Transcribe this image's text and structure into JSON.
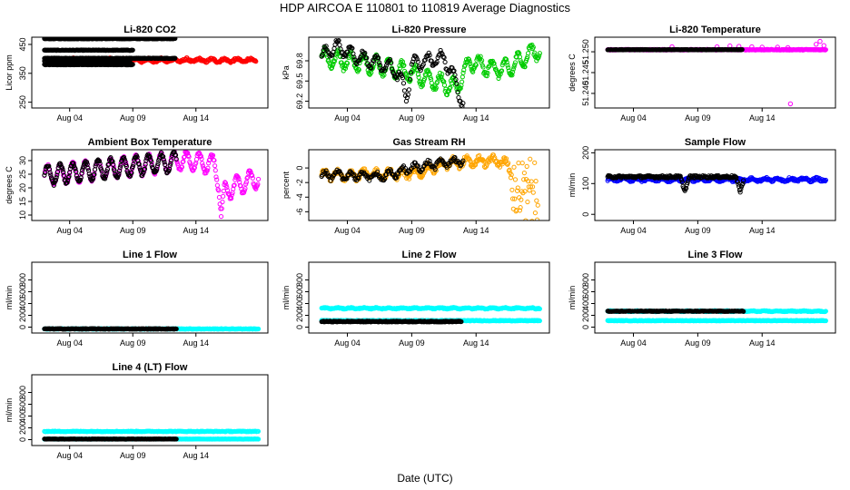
{
  "figure": {
    "title": "HDP    AIRCOA E    110801 to 110819    Average Diagnostics",
    "xlabel": "Date (UTC)"
  },
  "colors": {
    "black": "#000000",
    "red": "#ff0000",
    "green": "#00cc00",
    "magenta": "#ff00ff",
    "orange": "#ffa500",
    "blue": "#0000ff",
    "cyan": "#00ffff"
  },
  "chart_data": [
    {
      "id": "co2",
      "type": "scatter",
      "title": "Li-820 CO2",
      "ylabel": "Licor ppm",
      "xlim": [
        1.0,
        19.7
      ],
      "ylim": [
        230,
        475
      ],
      "xticks": [
        {
          "v": 4,
          "label": "Aug 04"
        },
        {
          "v": 9,
          "label": "Aug 09"
        },
        {
          "v": 14,
          "label": "Aug 14"
        }
      ],
      "yticks": [
        {
          "v": 250,
          "label": "250"
        },
        {
          "v": 350,
          "label": "350"
        },
        {
          "v": 450,
          "label": "450"
        }
      ],
      "series": [
        {
          "name": "red",
          "color": "red",
          "pattern": "dense",
          "x0": 2.5,
          "x1": 18.8,
          "base": 395,
          "amp": 5,
          "noise": 4,
          "period": 1
        },
        {
          "name": "black-a",
          "color": "black",
          "pattern": "dense",
          "x0": 2.0,
          "x1": 12.4,
          "base": 470,
          "amp": 0,
          "noise": 1,
          "period": 1
        },
        {
          "name": "black-b",
          "color": "black",
          "pattern": "dense",
          "x0": 2.0,
          "x1": 9.0,
          "base": 430,
          "amp": 0,
          "noise": 1,
          "period": 1
        },
        {
          "name": "black-c",
          "color": "black",
          "pattern": "dense",
          "x0": 2.0,
          "x1": 12.4,
          "base": 402,
          "amp": 0,
          "noise": 1,
          "period": 1
        },
        {
          "name": "black-d",
          "color": "black",
          "pattern": "dense",
          "x0": 2.0,
          "x1": 8.8,
          "base": 392,
          "amp": 3,
          "noise": 2,
          "period": 1
        },
        {
          "name": "black-e",
          "color": "black",
          "pattern": "dense",
          "x0": 2.0,
          "x1": 9.0,
          "base": 380,
          "amp": 0,
          "noise": 1,
          "period": 1
        }
      ]
    },
    {
      "id": "pressure",
      "type": "scatter",
      "title": "Li-820 Pressure",
      "ylabel": "kPa",
      "xlim": [
        1.0,
        19.7
      ],
      "ylim": [
        69.1,
        70.15
      ],
      "xticks": [
        {
          "v": 4,
          "label": "Aug 04"
        },
        {
          "v": 9,
          "label": "Aug 09"
        },
        {
          "v": 14,
          "label": "Aug 14"
        }
      ],
      "yticks": [
        {
          "v": 69.2,
          "label": "69.2"
        },
        {
          "v": 69.5,
          "label": "69.5"
        },
        {
          "v": 69.8,
          "label": "69.8"
        }
      ],
      "series": [
        {
          "name": "green",
          "color": "green",
          "pattern": "dense",
          "x0": 2.0,
          "x1": 19.0,
          "base": 69.75,
          "amp": 0.12,
          "noise": 0.04,
          "period": 1,
          "trend": [
            [
              2,
              69.85
            ],
            [
              7,
              69.72
            ],
            [
              10,
              69.55
            ],
            [
              12.5,
              69.4
            ],
            [
              13.5,
              69.78
            ],
            [
              15,
              69.7
            ],
            [
              16.5,
              69.68
            ],
            [
              18,
              69.88
            ],
            [
              19,
              69.98
            ]
          ]
        },
        {
          "name": "black",
          "color": "black",
          "pattern": "circles",
          "x0": 2.0,
          "x1": 13.0,
          "base": 69.85,
          "amp": 0.1,
          "noise": 0.03,
          "period": 1,
          "trend": [
            [
              2,
              69.85
            ],
            [
              3,
              70.02
            ],
            [
              5,
              69.85
            ],
            [
              7.2,
              69.72
            ],
            [
              8.0,
              69.6
            ],
            [
              8.6,
              69.25
            ],
            [
              9,
              69.75
            ],
            [
              11.5,
              69.85
            ],
            [
              12.4,
              69.5
            ],
            [
              12.9,
              69.2
            ]
          ]
        }
      ]
    },
    {
      "id": "licor-temp",
      "type": "scatter",
      "title": "Li-820 Temperature",
      "ylabel": "degrees C",
      "xlim": [
        1.0,
        19.7
      ],
      "ylim": [
        51.2365,
        51.2535
      ],
      "xticks": [
        {
          "v": 4,
          "label": "Aug 04"
        },
        {
          "v": 9,
          "label": "Aug 09"
        },
        {
          "v": 14,
          "label": "Aug 14"
        }
      ],
      "yticks": [
        {
          "v": 51.24,
          "label": "51.240"
        },
        {
          "v": 51.245,
          "label": "51.245"
        },
        {
          "v": 51.25,
          "label": "51.250"
        }
      ],
      "series": [
        {
          "name": "magenta",
          "color": "magenta",
          "pattern": "dense",
          "x0": 2.0,
          "x1": 19.0,
          "base": 51.2505,
          "amp": 0,
          "noise": 0.0001,
          "period": 1
        },
        {
          "name": "magenta-pts",
          "color": "magenta",
          "pattern": "points",
          "points": [
            [
              7.0,
              51.2512
            ],
            [
              10.5,
              51.2512
            ],
            [
              11.5,
              51.2514
            ],
            [
              12.2,
              51.2513
            ],
            [
              13.2,
              51.2512
            ],
            [
              14.0,
              51.2511
            ],
            [
              15.2,
              51.2511
            ],
            [
              16.0,
              51.251
            ],
            [
              16.2,
              51.2375
            ],
            [
              18.2,
              51.2518
            ],
            [
              18.5,
              51.2525
            ],
            [
              18.8,
              51.2515
            ]
          ]
        },
        {
          "name": "black",
          "color": "black",
          "pattern": "dense",
          "x0": 2.0,
          "x1": 12.5,
          "base": 51.2505,
          "amp": 0,
          "noise": 5e-05,
          "period": 1
        }
      ]
    },
    {
      "id": "ambient-temp",
      "type": "scatter",
      "title": "Ambient Box Temperature",
      "ylabel": "degrees C",
      "xlim": [
        1.0,
        19.7
      ],
      "ylim": [
        8,
        34
      ],
      "xticks": [
        {
          "v": 4,
          "label": "Aug 04"
        },
        {
          "v": 9,
          "label": "Aug 09"
        },
        {
          "v": 14,
          "label": "Aug 14"
        }
      ],
      "yticks": [
        {
          "v": 10,
          "label": "10"
        },
        {
          "v": 15,
          "label": "15"
        },
        {
          "v": 20,
          "label": "20"
        },
        {
          "v": 25,
          "label": "25"
        },
        {
          "v": 30,
          "label": "30"
        }
      ],
      "series": [
        {
          "name": "magenta",
          "color": "magenta",
          "pattern": "dense",
          "x0": 2.0,
          "x1": 19.0,
          "base": 27,
          "amp": 3.5,
          "noise": 0.6,
          "period": 1,
          "trend": [
            [
              2,
              24.5
            ],
            [
              6,
              26.5
            ],
            [
              10,
              28.5
            ],
            [
              13,
              30
            ],
            [
              15.5,
              28.5
            ],
            [
              15.8,
              22
            ],
            [
              16,
              10
            ],
            [
              16.3,
              19
            ],
            [
              19,
              24
            ]
          ]
        },
        {
          "name": "black",
          "color": "black",
          "pattern": "dense",
          "x0": 2.0,
          "x1": 12.5,
          "base": 27,
          "amp": 3.5,
          "noise": 0.5,
          "period": 1,
          "trend": [
            [
              2,
              24.5
            ],
            [
              6,
              26.5
            ],
            [
              10,
              28.5
            ],
            [
              12.5,
              29.5
            ]
          ]
        }
      ]
    },
    {
      "id": "rh",
      "type": "scatter",
      "title": "Gas Stream RH",
      "ylabel": "percent",
      "xlim": [
        1.0,
        19.7
      ],
      "ylim": [
        -7.2,
        2.5
      ],
      "xticks": [
        {
          "v": 4,
          "label": "Aug 04"
        },
        {
          "v": 9,
          "label": "Aug 09"
        },
        {
          "v": 14,
          "label": "Aug 14"
        }
      ],
      "yticks": [
        {
          "v": -6,
          "label": "-6"
        },
        {
          "v": -4,
          "label": "-4"
        },
        {
          "v": -2,
          "label": "-2"
        },
        {
          "v": 0,
          "label": "0"
        }
      ],
      "series": [
        {
          "name": "orange",
          "color": "orange",
          "pattern": "dense",
          "x0": 2.0,
          "x1": 19.0,
          "base": -0.8,
          "amp": 0.5,
          "noise": 0.4,
          "period": 1,
          "trend": [
            [
              2,
              -1.0
            ],
            [
              9,
              -0.8
            ],
            [
              12,
              0.7
            ],
            [
              15.5,
              1.0
            ],
            [
              16.5,
              0.5
            ],
            [
              17,
              -3
            ],
            [
              19,
              -4.5
            ]
          ],
          "spread": [
            [
              16.5,
              0
            ],
            [
              17,
              4.0
            ],
            [
              19,
              5.5
            ]
          ]
        },
        {
          "name": "black",
          "color": "black",
          "pattern": "circles",
          "x0": 2.0,
          "x1": 13.0,
          "base": -1.0,
          "amp": 0.5,
          "noise": 0.3,
          "period": 1,
          "trend": [
            [
              2,
              -1.0
            ],
            [
              7,
              -1.1
            ],
            [
              9,
              0.0
            ],
            [
              11,
              0.6
            ],
            [
              13,
              1.0
            ]
          ]
        }
      ]
    },
    {
      "id": "sample-flow",
      "type": "scatter",
      "title": "Sample Flow",
      "ylabel": "ml/min",
      "xlim": [
        1.0,
        19.7
      ],
      "ylim": [
        -20,
        210
      ],
      "xticks": [
        {
          "v": 4,
          "label": "Aug 04"
        },
        {
          "v": 9,
          "label": "Aug 09"
        },
        {
          "v": 14,
          "label": "Aug 14"
        }
      ],
      "yticks": [
        {
          "v": 0,
          "label": "0"
        },
        {
          "v": 100,
          "label": "100"
        },
        {
          "v": 200,
          "label": "200"
        }
      ],
      "series": [
        {
          "name": "blue",
          "color": "blue",
          "pattern": "dense",
          "x0": 2.0,
          "x1": 19.0,
          "base": 113,
          "amp": 4,
          "noise": 4,
          "period": 1
        },
        {
          "name": "black",
          "color": "black",
          "pattern": "dense",
          "x0": 2.0,
          "x1": 12.6,
          "base": 122,
          "amp": 0,
          "noise": 4,
          "period": 1,
          "dips": [
            [
              8.0,
              75
            ],
            [
              12.3,
              75
            ]
          ]
        }
      ]
    },
    {
      "id": "line1",
      "type": "scatter",
      "title": "Line 1 Flow",
      "ylabel": "ml/min",
      "xlim": [
        1.0,
        19.7
      ],
      "ylim": [
        -100,
        1100
      ],
      "xticks": [
        {
          "v": 4,
          "label": "Aug 04"
        },
        {
          "v": 9,
          "label": "Aug 09"
        },
        {
          "v": 14,
          "label": "Aug 14"
        }
      ],
      "yticks": [
        {
          "v": 0,
          "label": "0"
        },
        {
          "v": 200,
          "label": "200"
        },
        {
          "v": 400,
          "label": "400"
        },
        {
          "v": 600,
          "label": "600"
        },
        {
          "v": 800,
          "label": "800"
        }
      ],
      "series": [
        {
          "name": "cyan",
          "color": "cyan",
          "pattern": "dense",
          "x0": 2.0,
          "x1": 19.0,
          "base": -30,
          "amp": 0,
          "noise": 5,
          "period": 1
        },
        {
          "name": "black",
          "color": "black",
          "pattern": "dense",
          "x0": 2.0,
          "x1": 12.5,
          "base": -30,
          "amp": 0,
          "noise": 5,
          "period": 1
        }
      ]
    },
    {
      "id": "line2",
      "type": "scatter",
      "title": "Line 2 Flow",
      "ylabel": "ml/min",
      "xlim": [
        1.0,
        19.7
      ],
      "ylim": [
        -100,
        1100
      ],
      "xticks": [
        {
          "v": 4,
          "label": "Aug 04"
        },
        {
          "v": 9,
          "label": "Aug 09"
        },
        {
          "v": 14,
          "label": "Aug 14"
        }
      ],
      "yticks": [
        {
          "v": 0,
          "label": "0"
        },
        {
          "v": 200,
          "label": "200"
        },
        {
          "v": 400,
          "label": "400"
        },
        {
          "v": 600,
          "label": "600"
        },
        {
          "v": 800,
          "label": "800"
        }
      ],
      "series": [
        {
          "name": "cyan-hi",
          "color": "cyan",
          "pattern": "dense",
          "x0": 2.0,
          "x1": 19.0,
          "base": 320,
          "amp": 8,
          "noise": 8,
          "period": 1
        },
        {
          "name": "cyan-lo",
          "color": "cyan",
          "pattern": "dense",
          "x0": 2.0,
          "x1": 19.0,
          "base": 110,
          "amp": 0,
          "noise": 6,
          "period": 1
        },
        {
          "name": "black",
          "color": "black",
          "pattern": "dense",
          "x0": 2.0,
          "x1": 12.9,
          "base": 95,
          "amp": 0,
          "noise": 8,
          "period": 1
        }
      ]
    },
    {
      "id": "line3",
      "type": "scatter",
      "title": "Line 3 Flow",
      "ylabel": "ml/min",
      "xlim": [
        1.0,
        19.7
      ],
      "ylim": [
        -100,
        1100
      ],
      "xticks": [
        {
          "v": 4,
          "label": "Aug 04"
        },
        {
          "v": 9,
          "label": "Aug 09"
        },
        {
          "v": 14,
          "label": "Aug 14"
        }
      ],
      "yticks": [
        {
          "v": 0,
          "label": "0"
        },
        {
          "v": 200,
          "label": "200"
        },
        {
          "v": 400,
          "label": "400"
        },
        {
          "v": 600,
          "label": "600"
        },
        {
          "v": 800,
          "label": "800"
        }
      ],
      "series": [
        {
          "name": "cyan-hi",
          "color": "cyan",
          "pattern": "dense",
          "x0": 2.0,
          "x1": 19.0,
          "base": 270,
          "amp": 5,
          "noise": 6,
          "period": 1
        },
        {
          "name": "cyan-lo",
          "color": "cyan",
          "pattern": "dense",
          "x0": 2.0,
          "x1": 19.0,
          "base": 110,
          "amp": 0,
          "noise": 5,
          "period": 1
        },
        {
          "name": "black",
          "color": "black",
          "pattern": "dense",
          "x0": 2.0,
          "x1": 12.6,
          "base": 270,
          "amp": 0,
          "noise": 5,
          "period": 1
        }
      ]
    },
    {
      "id": "line4",
      "type": "scatter",
      "title": "Line 4 (LT) Flow",
      "ylabel": "ml/min",
      "xlim": [
        1.0,
        19.7
      ],
      "ylim": [
        -100,
        1100
      ],
      "xticks": [
        {
          "v": 4,
          "label": "Aug 04"
        },
        {
          "v": 9,
          "label": "Aug 09"
        },
        {
          "v": 14,
          "label": "Aug 14"
        }
      ],
      "yticks": [
        {
          "v": 0,
          "label": "0"
        },
        {
          "v": 200,
          "label": "200"
        },
        {
          "v": 400,
          "label": "400"
        },
        {
          "v": 600,
          "label": "600"
        },
        {
          "v": 800,
          "label": "800"
        }
      ],
      "series": [
        {
          "name": "cyan-hi",
          "color": "cyan",
          "pattern": "circles",
          "x0": 2.0,
          "x1": 19.0,
          "base": 140,
          "amp": 0,
          "noise": 6,
          "period": 1
        },
        {
          "name": "cyan-lo",
          "color": "cyan",
          "pattern": "dense",
          "x0": 2.0,
          "x1": 19.0,
          "base": 10,
          "amp": 0,
          "noise": 3,
          "period": 1
        },
        {
          "name": "black",
          "color": "black",
          "pattern": "dense",
          "x0": 2.0,
          "x1": 12.5,
          "base": 10,
          "amp": 0,
          "noise": 3,
          "period": 1
        }
      ]
    }
  ]
}
